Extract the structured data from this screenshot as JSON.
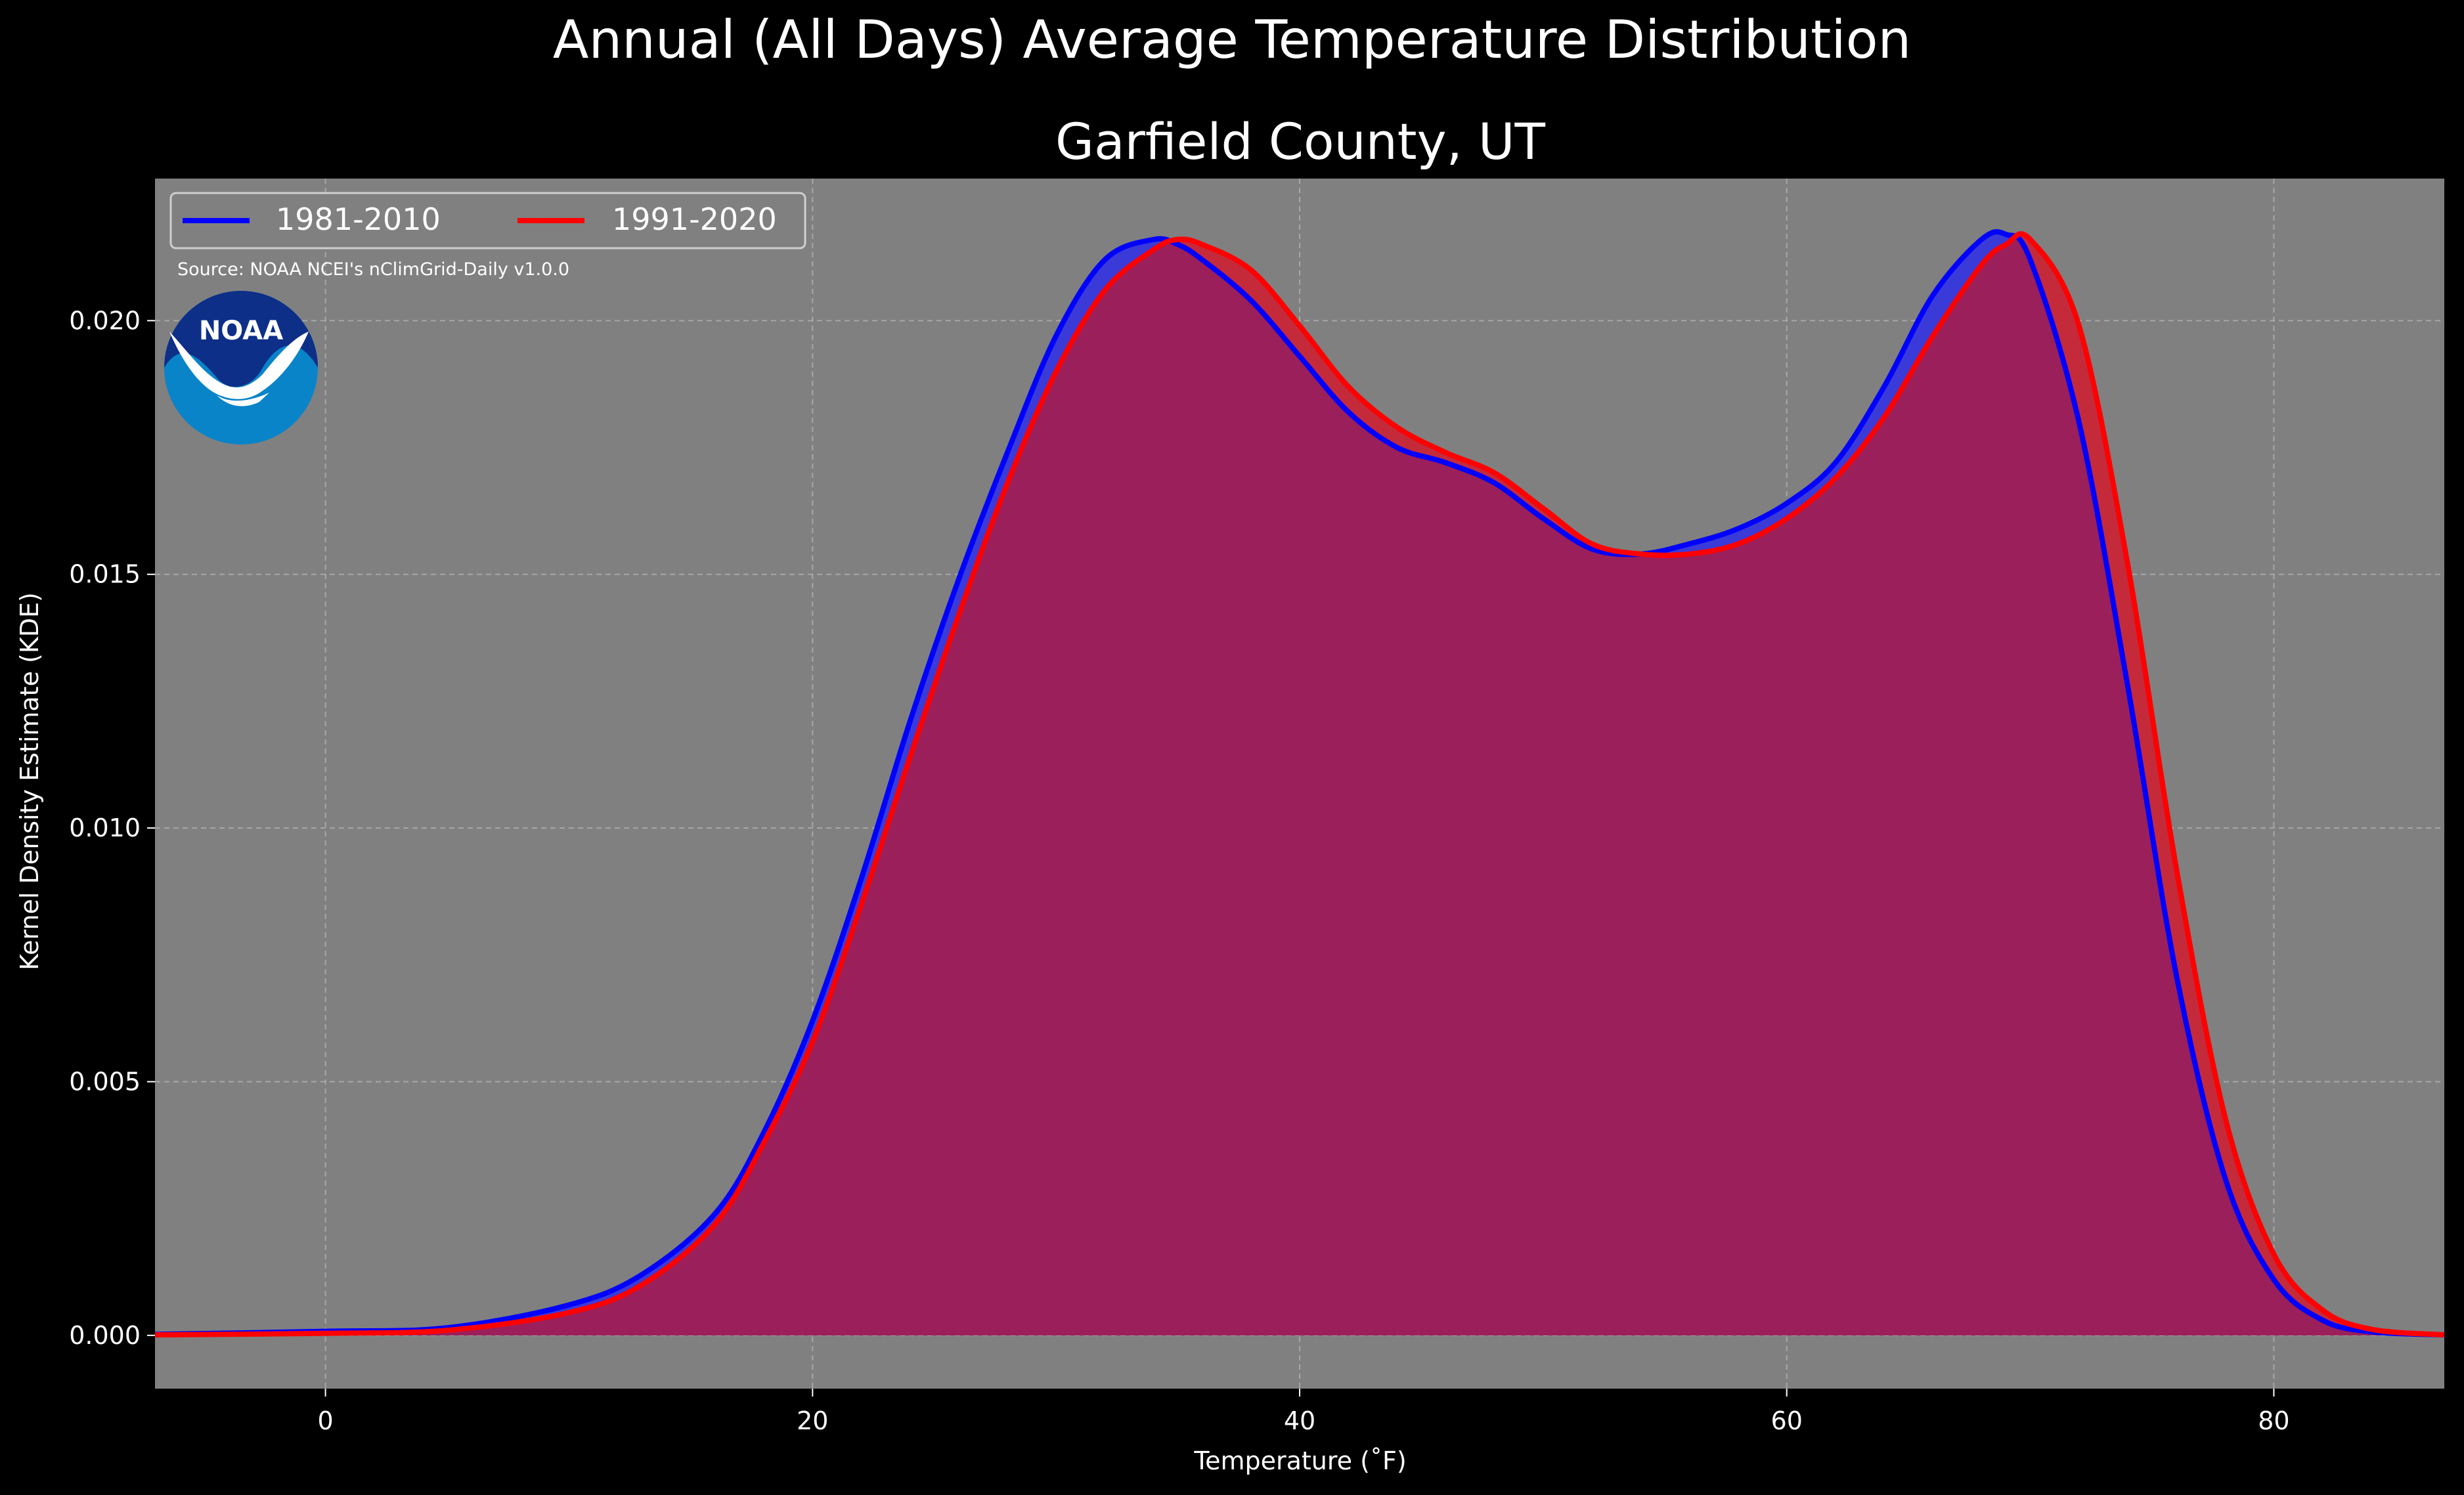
{
  "chart_data": {
    "type": "area",
    "title": "Annual (All Days) Average Temperature Distribution",
    "subtitle": "Garfield County, UT",
    "xlabel": "Temperature ($^\\circ$F)",
    "xlabel_display": "Temperature (˚F)",
    "ylabel": "Kernel Density Estimate (KDE)",
    "xlim": [
      -7,
      87
    ],
    "ylim": [
      -0.00105,
      0.0228
    ],
    "x_ticks": [
      0,
      20,
      40,
      60,
      80
    ],
    "x_tick_labels": [
      "0",
      "20",
      "40",
      "60",
      "80"
    ],
    "y_ticks": [
      0.0,
      0.005,
      0.01,
      0.015,
      0.02
    ],
    "y_tick_labels": [
      "0.000",
      "0.005",
      "0.010",
      "0.015",
      "0.020"
    ],
    "grid": true,
    "legend_position": "top-left",
    "source_note": "Source: NOAA NCEI's nClimGrid-Daily v1.0.0",
    "logo_text": "NOAA",
    "colors": {
      "background": "#000000",
      "plot_background": "#808080",
      "grid": "#b8b8b8",
      "text": "#ffffff",
      "overlap_fill": "#9b1f5b"
    },
    "series": [
      {
        "name": "1981-2010",
        "color": "#0000ff",
        "fill_color": "#3a3ad8",
        "x": [
          -7,
          0,
          5,
          10,
          13,
          16,
          18,
          20,
          22,
          24,
          26,
          28,
          30,
          32,
          34,
          35,
          36,
          38,
          40,
          42,
          44,
          46,
          48,
          50,
          52,
          54,
          56,
          58,
          60,
          62,
          64,
          66,
          68,
          69,
          70,
          72,
          74,
          76,
          78,
          80,
          82,
          84,
          87
        ],
        "y": [
          2e-05,
          8e-05,
          0.00015,
          0.0006,
          0.0012,
          0.0024,
          0.004,
          0.0062,
          0.009,
          0.0121,
          0.0149,
          0.0174,
          0.0197,
          0.0212,
          0.0216,
          0.0215,
          0.0212,
          0.0204,
          0.0193,
          0.0182,
          0.0175,
          0.0172,
          0.0168,
          0.0161,
          0.0155,
          0.0154,
          0.0156,
          0.0159,
          0.0164,
          0.0172,
          0.0187,
          0.0205,
          0.0216,
          0.0217,
          0.0212,
          0.018,
          0.0128,
          0.0071,
          0.0031,
          0.0011,
          0.0003,
          7e-05,
          1e-05
        ]
      },
      {
        "name": "1991-2020",
        "color": "#ff0000",
        "fill_color": "#c42a3a",
        "x": [
          -7,
          0,
          5,
          10,
          13,
          16,
          18,
          20,
          22,
          24,
          26,
          28,
          30,
          32,
          34,
          35,
          36,
          38,
          40,
          42,
          44,
          46,
          48,
          50,
          52,
          54,
          56,
          58,
          60,
          62,
          64,
          66,
          68,
          69,
          70,
          72,
          74,
          76,
          78,
          80,
          82,
          84,
          87
        ],
        "y": [
          1e-05,
          4e-05,
          0.0001,
          0.00045,
          0.001,
          0.0022,
          0.0038,
          0.0058,
          0.0085,
          0.0114,
          0.0142,
          0.0168,
          0.019,
          0.0206,
          0.0214,
          0.0216,
          0.0215,
          0.021,
          0.0199,
          0.0187,
          0.0179,
          0.0174,
          0.017,
          0.0163,
          0.0156,
          0.0154,
          0.0154,
          0.0156,
          0.0161,
          0.0169,
          0.0181,
          0.0197,
          0.0211,
          0.0215,
          0.0216,
          0.0199,
          0.0152,
          0.0092,
          0.0043,
          0.0016,
          0.0005,
          0.00012,
          1e-05
        ]
      }
    ]
  }
}
